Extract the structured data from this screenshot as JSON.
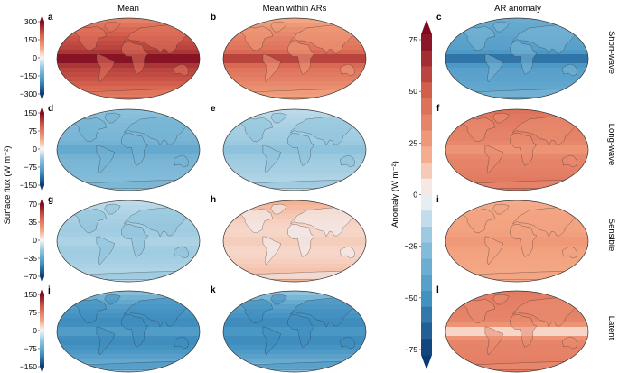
{
  "column_titles": [
    "Mean",
    "Mean within ARs",
    "AR anomaly"
  ],
  "row_labels": [
    "Short-wave",
    "Long-wave",
    "Sensible",
    "Latent"
  ],
  "panel_letters": [
    "a",
    "b",
    "c",
    "d",
    "e",
    "f",
    "g",
    "h",
    "i",
    "j",
    "k",
    "l"
  ],
  "left_axis_label": "Surface flux (W m⁻²)",
  "right_axis_label": "Anomaly (W m⁻²)",
  "row_colorbars": [
    {
      "ticks": [
        "300",
        "150",
        "0",
        "−150",
        "−300"
      ],
      "range": [
        -300,
        300
      ]
    },
    {
      "ticks": [
        "150",
        "75",
        "0",
        "−75",
        "−150"
      ],
      "range": [
        -150,
        150
      ]
    },
    {
      "ticks": [
        "70",
        "35",
        "0",
        "−35",
        "−70"
      ],
      "range": [
        -70,
        70
      ]
    },
    {
      "ticks": [
        "150",
        "75",
        "0",
        "−75",
        "−150"
      ],
      "range": [
        -150,
        150
      ]
    }
  ],
  "anomaly_colorbar": {
    "ticks": [
      "75",
      "50",
      "25",
      "0",
      "−25",
      "−50",
      "−75"
    ],
    "range": [
      -75,
      75
    ]
  },
  "panels": [
    {
      "row": 0,
      "col": 0,
      "base": 0.78,
      "eq": 0.22,
      "pole": -0.35
    },
    {
      "row": 0,
      "col": 1,
      "base": 0.55,
      "eq": 0.25,
      "pole": -0.3
    },
    {
      "row": 0,
      "col": 2,
      "base": -0.55,
      "eq": -0.25,
      "pole": 0.1
    },
    {
      "row": 1,
      "col": 0,
      "base": -0.4,
      "eq": -0.1,
      "pole": 0.1
    },
    {
      "row": 1,
      "col": 1,
      "base": -0.25,
      "eq": -0.05,
      "pole": 0.1
    },
    {
      "row": 1,
      "col": 2,
      "base": 0.45,
      "eq": -0.1,
      "pole": 0.1
    },
    {
      "row": 2,
      "col": 0,
      "base": -0.25,
      "eq": 0.05,
      "pole": 0.1
    },
    {
      "row": 2,
      "col": 1,
      "base": 0.1,
      "eq": 0.05,
      "pole": 0.15
    },
    {
      "row": 2,
      "col": 2,
      "base": 0.3,
      "eq": 0.05,
      "pole": -0.05
    },
    {
      "row": 3,
      "col": 0,
      "base": -0.7,
      "eq": 0.15,
      "pole": 0.4
    },
    {
      "row": 3,
      "col": 1,
      "base": -0.7,
      "eq": 0.1,
      "pole": 0.45
    },
    {
      "row": 3,
      "col": 2,
      "base": 0.45,
      "eq": -0.4,
      "pole": 0.05
    }
  ],
  "colors": {
    "red_dark": "#7f0a1f",
    "red": "#d6604d",
    "red_light": "#f4a582",
    "neutral": "#f7f7f7",
    "blue_light": "#92c5de",
    "blue": "#4393c3",
    "blue_dark": "#0b3a73",
    "coast": "#2b2b2b"
  }
}
